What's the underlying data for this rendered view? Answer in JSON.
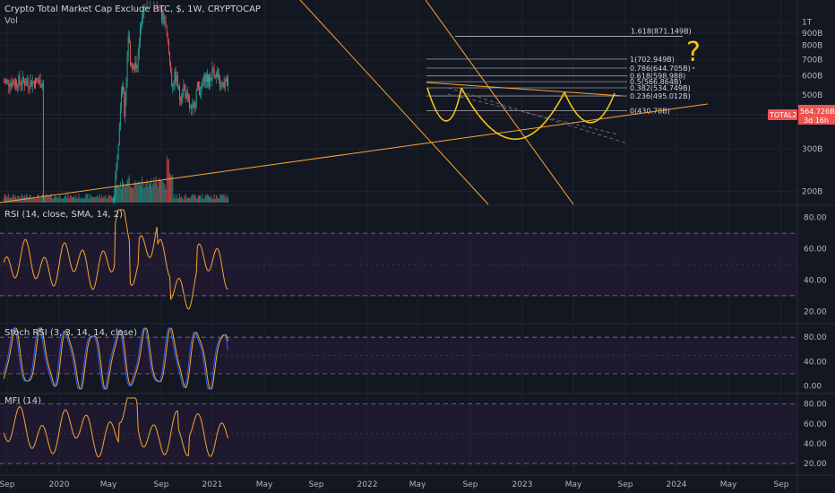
{
  "header": {
    "title": "Crypto Total Market Cap Exclude BTC, $, 1W, CRYPTOCAP",
    "sub": "Vol"
  },
  "colors": {
    "bg": "#131722",
    "grid": "#1e222d",
    "up": "#26a69a",
    "down": "#ef5350",
    "orange": "#f7a530",
    "yellow": "#f5c518",
    "purple": "#2a1b3d",
    "blue": "#2962ff",
    "price_badge": "#ef5350",
    "axis_text": "#b2b5be"
  },
  "chart_data": [
    {
      "type": "candlestick",
      "id": "price",
      "yscale": "log",
      "ylim": [
        180,
        1150
      ],
      "yticks": [
        "1T",
        "900B",
        "800B",
        "700B",
        "600B",
        "500B",
        "400B",
        "300B",
        "200B"
      ],
      "ytick_values": [
        1000,
        900,
        800,
        700,
        600,
        500,
        400,
        300,
        200
      ],
      "xlabels": [
        "Sep",
        "2020",
        "May",
        "Sep",
        "2021",
        "May",
        "Sep",
        "2022",
        "May",
        "Sep",
        "2023",
        "May",
        "Sep",
        "2024",
        "May",
        "Sep"
      ],
      "last_price_label": "TOTAL2",
      "last_price": "564.726B",
      "countdown": "3d 16h",
      "fib_levels": [
        {
          "label": "1.618(871.149B)",
          "value": 871.149
        },
        {
          "label": "1(702.949B)",
          "value": 702.949
        },
        {
          "label": "0.786(644.705B)",
          "value": 644.705
        },
        {
          "label": "0.618(598.988)",
          "value": 598.988
        },
        {
          "label": "0.5(566.864B)",
          "value": 566.864
        },
        {
          "label": "0.382(534.749B)",
          "value": 534.749
        },
        {
          "label": "0.236(495.012B)",
          "value": 495.012
        },
        {
          "label": "0(430.78B)",
          "value": 430.78
        }
      ],
      "annotation": "?"
    },
    {
      "type": "line",
      "id": "rsi",
      "label": "RSI (14, close, SMA, 14, 2)",
      "yticks": [
        "80.00",
        "60.00",
        "40.00",
        "20.00"
      ],
      "ytick_values": [
        80,
        60,
        40,
        20
      ],
      "ylim": [
        15,
        85
      ],
      "bands": [
        30,
        70
      ]
    },
    {
      "type": "line",
      "id": "stoch",
      "label": "Stoch RSI (3, 3, 14, 14, close)",
      "yticks": [
        "80.00",
        "40.00",
        "0.00"
      ],
      "ytick_values": [
        80,
        40,
        0
      ],
      "ylim": [
        -5,
        95
      ],
      "bands": [
        20,
        80
      ]
    },
    {
      "type": "line",
      "id": "mfi",
      "label": "MFI (14)",
      "yticks": [
        "80.00",
        "60.00",
        "40.00",
        "20.00"
      ],
      "ytick_values": [
        80,
        60,
        40,
        20
      ],
      "ylim": [
        12,
        86
      ],
      "bands": [
        20,
        80
      ]
    }
  ]
}
